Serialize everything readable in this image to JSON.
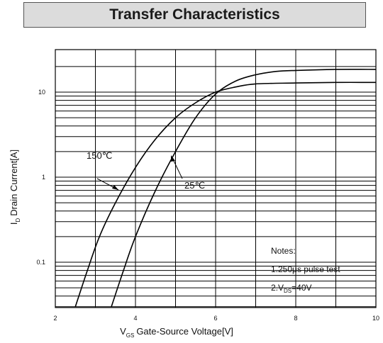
{
  "chart_data": {
    "type": "line",
    "title": "Transfer Characteristics",
    "xlabel": "Gate-Source Voltage[V]",
    "xlabel_symbol": "V",
    "xlabel_sub": "GS",
    "ylabel": "Drain Current[A]",
    "ylabel_symbol": "I",
    "ylabel_sub": "D",
    "x_scale": "linear",
    "y_scale": "log",
    "xlim": [
      2,
      10
    ],
    "ylim": [
      0.03,
      25
    ],
    "x_ticks": [
      2,
      4,
      6,
      8,
      10
    ],
    "x_tick_labels": [
      "2",
      "4",
      "6",
      "8",
      "10"
    ],
    "y_ticks": [
      0.1,
      1,
      10
    ],
    "y_tick_labels": [
      "0.1",
      "1",
      "10"
    ],
    "grid": true,
    "series": [
      {
        "name": "150℃",
        "x": [
          2.5,
          2.8,
          3.1,
          3.5,
          4.0,
          4.5,
          5.0,
          5.5,
          6.0,
          6.5,
          7.0,
          8.0,
          9.0,
          10.0
        ],
        "y": [
          0.03,
          0.08,
          0.2,
          0.5,
          1.3,
          2.8,
          5.0,
          7.5,
          10.0,
          11.5,
          12.5,
          12.8,
          13.0,
          13.0
        ]
      },
      {
        "name": "25℃",
        "x": [
          3.4,
          3.7,
          4.0,
          4.5,
          5.0,
          5.5,
          6.0,
          6.5,
          7.0,
          7.5,
          8.0,
          9.0,
          10.0
        ],
        "y": [
          0.03,
          0.08,
          0.2,
          0.7,
          2.0,
          5.0,
          9.5,
          13.5,
          16.0,
          17.5,
          18.0,
          18.5,
          18.5
        ]
      }
    ],
    "annotations": {
      "label_150": "150℃",
      "label_25": "25℃",
      "notes_title": "Notes:",
      "note_1": "1.250μs pulse test",
      "note_2_prefix": "2.V",
      "note_2_sub": "DS",
      "note_2_suffix": "=40V"
    }
  }
}
